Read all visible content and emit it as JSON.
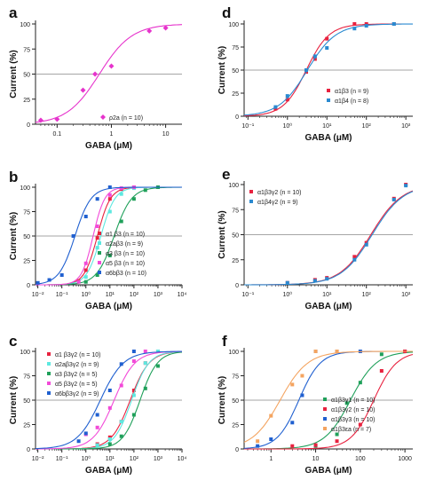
{
  "chart_data": [
    {
      "panel_label": "a",
      "type": "scatter",
      "xscale": "log",
      "xlabel": "GABA  (μM)",
      "ylabel": "Current (%)",
      "xlim": [
        0.04,
        20
      ],
      "ylim": [
        0,
        100
      ],
      "xticks": [
        0.1,
        1,
        10
      ],
      "xtick_labels": [
        "0.1",
        "1",
        "10"
      ],
      "yticks": [
        0,
        25,
        50,
        75,
        100
      ],
      "ytick_labels": [
        "0",
        "25",
        "50",
        "75",
        "100"
      ],
      "reference_line": 50,
      "legend_position": "bottom-right",
      "series": [
        {
          "name": "ρ2a (n = 10)",
          "color": "#e633cc",
          "marker": "diamond",
          "x": [
            0.05,
            0.1,
            0.3,
            0.5,
            1,
            5,
            10
          ],
          "y": [
            4,
            5,
            34,
            50,
            58,
            93,
            96
          ],
          "ec50": 0.6,
          "hill": 1.45
        }
      ]
    },
    {
      "panel_label": "b",
      "type": "scatter",
      "xscale": "log",
      "xlabel": "GABA  (μM)",
      "ylabel": "Current (%)",
      "xlim": [
        0.008,
        10000
      ],
      "ylim": [
        0,
        100
      ],
      "xticks": [
        0.01,
        0.1,
        1,
        10,
        100,
        1000,
        10000
      ],
      "xtick_labels": [
        "10⁻²",
        "10⁻¹",
        "10⁰",
        "10¹",
        "10²",
        "10³",
        "10⁴"
      ],
      "yticks": [
        0,
        25,
        50,
        75,
        100
      ],
      "ytick_labels": [
        "0",
        "25",
        "50",
        "75",
        "100"
      ],
      "reference_line": 50,
      "legend_position": "bottom-right",
      "series": [
        {
          "name": "α1  β3 (n = 10)",
          "color": "#e8223f",
          "marker": "square",
          "x": [
            0.5,
            1,
            3,
            10,
            30,
            100,
            1000
          ],
          "y": [
            4,
            15,
            48,
            88,
            98,
            100,
            100
          ],
          "ec50": 3,
          "hill": 1.6
        },
        {
          "name": "α2aβ3 (n = 9)",
          "color": "#5de8e0",
          "marker": "square",
          "x": [
            1,
            3,
            10,
            30,
            100,
            1000
          ],
          "y": [
            8,
            38,
            75,
            93,
            99,
            100
          ],
          "ec50": 4.2,
          "hill": 1.5
        },
        {
          "name": "α3  β3 (n = 10)",
          "color": "#1fa05a",
          "marker": "square",
          "x": [
            1,
            3,
            10,
            30,
            100,
            300,
            1000
          ],
          "y": [
            3,
            10,
            30,
            65,
            88,
            97,
            100
          ],
          "ec50": 15,
          "hill": 1.2
        },
        {
          "name": "α5  β3 (n = 10)",
          "color": "#f24ad8",
          "marker": "square",
          "x": [
            0.5,
            1,
            3,
            10,
            30,
            100
          ],
          "y": [
            3,
            22,
            60,
            92,
            99,
            100
          ],
          "ec50": 2,
          "hill": 1.8
        },
        {
          "name": "α6bβ3 (n = 10)",
          "color": "#2060d0",
          "marker": "square",
          "x": [
            0.01,
            0.03,
            0.1,
            0.3,
            1,
            3,
            10
          ],
          "y": [
            2,
            5,
            10,
            50,
            70,
            88,
            100
          ],
          "ec50": 0.35,
          "hill": 1.3
        }
      ]
    },
    {
      "panel_label": "c",
      "type": "scatter",
      "xscale": "log",
      "xlabel": "GABA  (μM)",
      "ylabel": "Current (%)",
      "xlim": [
        0.008,
        10000
      ],
      "ylim": [
        0,
        100
      ],
      "xticks": [
        0.01,
        0.1,
        1,
        10,
        100,
        1000,
        10000
      ],
      "xtick_labels": [
        "10⁻²",
        "10⁻¹",
        "10⁰",
        "10¹",
        "10²",
        "10³",
        "10⁴"
      ],
      "yticks": [
        0,
        25,
        50,
        75,
        100
      ],
      "ytick_labels": [
        "0",
        "25",
        "50",
        "75",
        "100"
      ],
      "reference_line": 50,
      "legend_position": "top-left",
      "series": [
        {
          "name": "α1  β3γ2 (n = 10)",
          "color": "#e8223f",
          "marker": "square",
          "x": [
            3,
            10,
            30,
            100,
            300,
            1000
          ],
          "y": [
            5,
            12,
            28,
            60,
            88,
            100
          ],
          "ec50": 70,
          "hill": 1.1
        },
        {
          "name": "α2aβ3γ2 (n = 9)",
          "color": "#5de8e0",
          "marker": "square",
          "x": [
            3,
            10,
            30,
            100,
            300,
            1000
          ],
          "y": [
            4,
            10,
            28,
            55,
            88,
            100
          ],
          "ec50": 80,
          "hill": 1.2
        },
        {
          "name": "α3  β3γ2 (n = 5)",
          "color": "#1fa05a",
          "marker": "square",
          "x": [
            10,
            30,
            100,
            300,
            1000
          ],
          "y": [
            5,
            13,
            35,
            62,
            85
          ],
          "ec50": 180,
          "hill": 1.2
        },
        {
          "name": "α5  β3γ2 (n = 5)",
          "color": "#f24ad8",
          "marker": "square",
          "x": [
            1,
            3,
            10,
            30,
            100,
            300
          ],
          "y": [
            15,
            22,
            42,
            65,
            90,
            100
          ],
          "ec50": 15,
          "hill": 1.0
        },
        {
          "name": "α6bβ3γ2 (n = 9)",
          "color": "#2060d0",
          "marker": "square",
          "x": [
            0.5,
            1,
            3,
            10,
            30,
            100
          ],
          "y": [
            8,
            16,
            35,
            60,
            87,
            100
          ],
          "ec50": 4,
          "hill": 0.9
        }
      ]
    },
    {
      "panel_label": "d",
      "type": "scatter",
      "xscale": "log",
      "xlabel": "GABA  (μM)",
      "ylabel": "Current (%)",
      "xlim": [
        0.08,
        1500
      ],
      "ylim": [
        0,
        100
      ],
      "xticks": [
        0.1,
        1,
        10,
        100,
        1000
      ],
      "xtick_labels": [
        "10⁻¹",
        "10⁰",
        "10¹",
        "10²",
        "10³"
      ],
      "yticks": [
        0,
        25,
        50,
        75,
        100
      ],
      "ytick_labels": [
        "0",
        "25",
        "50",
        "75",
        "100"
      ],
      "reference_line": 50,
      "legend_position": "bottom-right",
      "series": [
        {
          "name": "α1β3  (n = 9)",
          "color": "#e8223f",
          "marker": "square",
          "x": [
            0.5,
            1,
            3,
            5,
            10,
            50,
            100,
            500
          ],
          "y": [
            8,
            18,
            48,
            62,
            84,
            100,
            100,
            100
          ],
          "ec50": 3,
          "hill": 1.5
        },
        {
          "name": "α1β4  (n = 8)",
          "color": "#2a8ad0",
          "marker": "square",
          "x": [
            0.5,
            1,
            3,
            5,
            10,
            50,
            100,
            500
          ],
          "y": [
            10,
            22,
            50,
            65,
            74,
            95,
            98,
            100
          ],
          "ec50": 3.2,
          "hill": 1.2
        }
      ]
    },
    {
      "panel_label": "e",
      "type": "scatter",
      "xscale": "log",
      "xlabel": "GABA  (μM)",
      "ylabel": "Current (%)",
      "xlim": [
        0.08,
        1500
      ],
      "ylim": [
        0,
        100
      ],
      "xticks": [
        0.1,
        1,
        10,
        100,
        1000
      ],
      "xtick_labels": [
        "10⁻¹",
        "10⁰",
        "10¹",
        "10²",
        "10³"
      ],
      "yticks": [
        0,
        25,
        50,
        75,
        100
      ],
      "ytick_labels": [
        "0",
        "25",
        "50",
        "75",
        "100"
      ],
      "reference_line": 50,
      "legend_position": "top-left",
      "series": [
        {
          "name": "α1β3γ2 (n = 10)",
          "color": "#e8223f",
          "marker": "square",
          "x": [
            1,
            5,
            10,
            50,
            100,
            500,
            1000
          ],
          "y": [
            2,
            5,
            7,
            28,
            42,
            86,
            100
          ],
          "ec50": 130,
          "hill": 1.1
        },
        {
          "name": "α1β4γ2 (n = 9)",
          "color": "#2a8ad0",
          "marker": "square",
          "x": [
            1,
            5,
            10,
            50,
            100,
            500,
            1000
          ],
          "y": [
            2,
            4,
            6,
            25,
            40,
            85,
            99
          ],
          "ec50": 140,
          "hill": 1.1
        }
      ]
    },
    {
      "panel_label": "f",
      "type": "scatter",
      "xscale": "log",
      "xlabel": "GABA  (μM)",
      "ylabel": "Current (%)",
      "xlim": [
        0.25,
        1500
      ],
      "ylim": [
        0,
        100
      ],
      "xticks": [
        1,
        10,
        100,
        1000
      ],
      "xtick_labels": [
        "1",
        "10",
        "100",
        "1000"
      ],
      "yticks": [
        0,
        25,
        50,
        75,
        100
      ],
      "ytick_labels": [
        "0",
        "25",
        "50",
        "75",
        "100"
      ],
      "reference_line": 50,
      "legend_position": "bottom-right",
      "series": [
        {
          "name": "α1β3γ1 (n = 10)",
          "color": "#1fa05a",
          "marker": "square",
          "x": [
            10,
            30,
            50,
            100,
            300,
            1000
          ],
          "y": [
            3,
            15,
            47,
            68,
            97,
            100
          ],
          "ec50": 60,
          "hill": 1.5
        },
        {
          "name": "α1β3γ2 (n = 10)",
          "color": "#e8223f",
          "marker": "square",
          "x": [
            3,
            10,
            30,
            100,
            300,
            1000
          ],
          "y": [
            3,
            4,
            8,
            25,
            80,
            100
          ],
          "ec50": 200,
          "hill": 1.7
        },
        {
          "name": "α1β3γ3 (n = 10)",
          "color": "#2060d0",
          "marker": "square",
          "x": [
            0.5,
            1,
            3,
            5,
            10,
            30,
            100
          ],
          "y": [
            3,
            10,
            27,
            55,
            100,
            100,
            100
          ],
          "ec50": 4.2,
          "hill": 1.8
        },
        {
          "name": "α1β3εa (n = 7)",
          "color": "#f4a460",
          "marker": "square",
          "x": [
            0.5,
            1,
            3,
            5,
            10,
            30
          ],
          "y": [
            8,
            34,
            66,
            75,
            100,
            100
          ],
          "ec50": 1.6,
          "hill": 1.4
        }
      ]
    }
  ]
}
